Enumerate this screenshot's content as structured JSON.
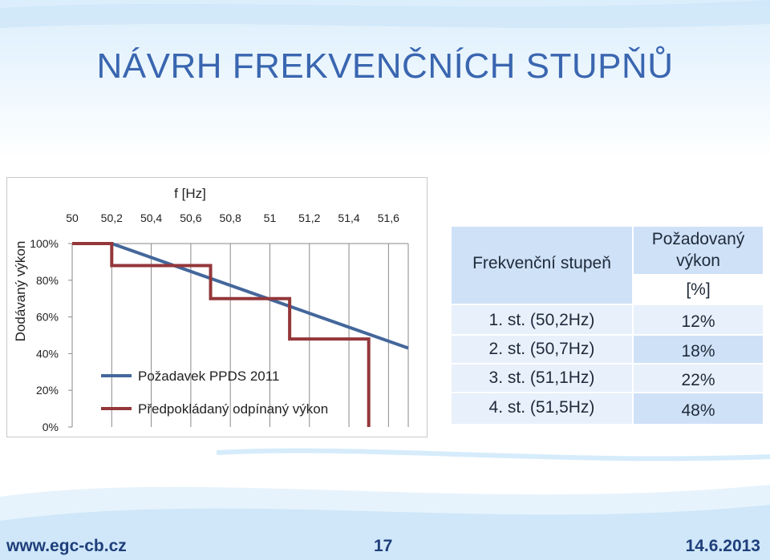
{
  "slide": {
    "title": "NÁVRH FREKVENČNÍCH STUPŇŮ",
    "footer_url": "www.egc-cb.cz",
    "page_number": "17",
    "date": "14.6.2013"
  },
  "chart_data": {
    "type": "line",
    "xlabel": "f [Hz]",
    "ylabel": "Dodávaný výkon",
    "x_ticks": [
      "50",
      "50,2",
      "50,4",
      "50,6",
      "50,8",
      "51",
      "51,2",
      "51,4",
      "51,6"
    ],
    "y_ticks": [
      "0%",
      "20%",
      "40%",
      "60%",
      "80%",
      "100%"
    ],
    "xlim": [
      50,
      51.7
    ],
    "ylim": [
      0,
      100
    ],
    "x_axis_position": "top",
    "grid": true,
    "legend_position": "center",
    "series": [
      {
        "name": "Požadavek PPDS 2011",
        "color": "#44679b",
        "x": [
          50,
          50.2,
          51.7
        ],
        "y": [
          100,
          100,
          43
        ]
      },
      {
        "name": "Předpokládaný odpínaný výkon",
        "color": "#94373a",
        "x": [
          50,
          50.2,
          50.2,
          50.7,
          50.7,
          51.1,
          51.1,
          51.5,
          51.5
        ],
        "y": [
          100,
          100,
          88,
          88,
          70,
          70,
          48,
          48,
          0
        ]
      }
    ]
  },
  "table": {
    "header_stage": "Frekvenční stupeň",
    "header_power_line1": "Požadovaný",
    "header_power_line2": "výkon",
    "header_unit": "[%]",
    "rows": [
      {
        "stage": "1. st. (50,2Hz)",
        "power": "12%"
      },
      {
        "stage": "2. st. (50,7Hz)",
        "power": "18%"
      },
      {
        "stage": "3. st. (51,1Hz)",
        "power": "22%"
      },
      {
        "stage": "4. st. (51,5Hz)",
        "power": "48%"
      }
    ]
  },
  "colors": {
    "title": "#3a66b0",
    "table_dark": "#cfe1f7",
    "table_light": "#e8f0fb",
    "footer": "#1f3e7a"
  }
}
